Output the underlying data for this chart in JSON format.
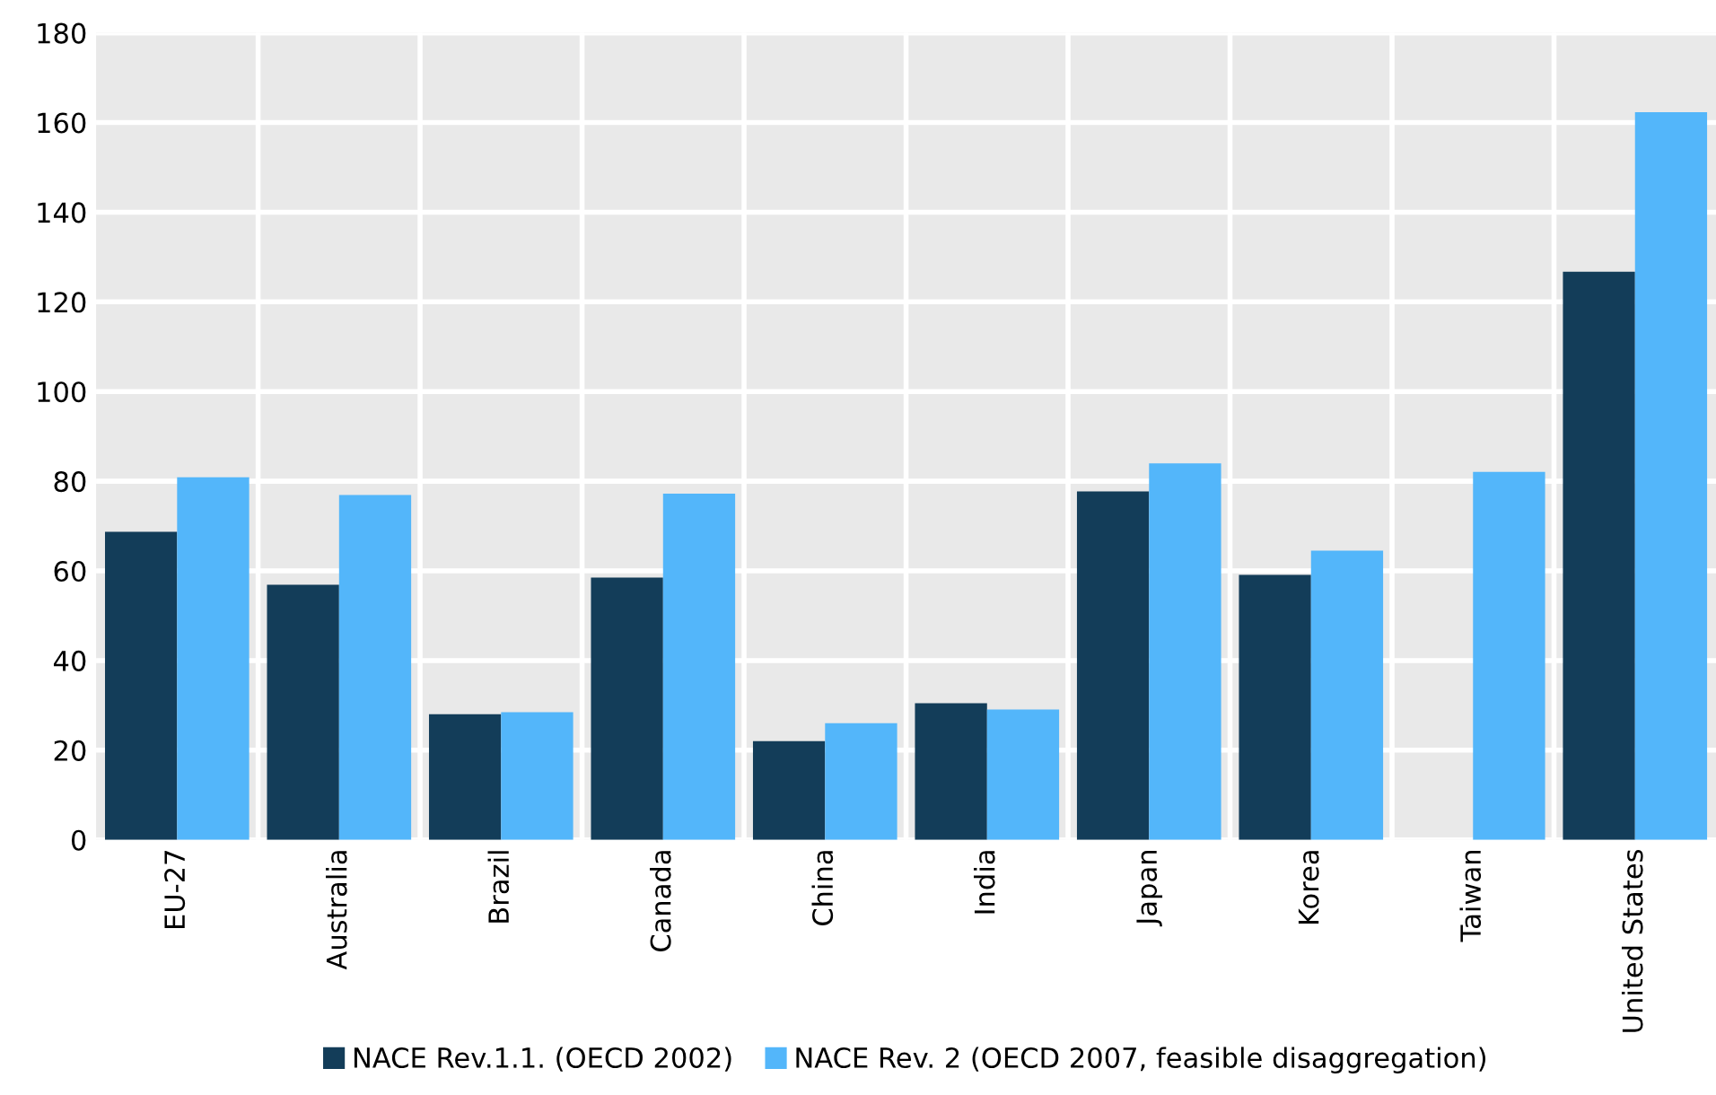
{
  "chart_data": {
    "type": "bar",
    "categories": [
      "EU-27",
      "Australia",
      "Brazil",
      "Canada",
      "China",
      "India",
      "Japan",
      "Korea",
      "Taiwan",
      "United States"
    ],
    "series": [
      {
        "name": "NACE Rev.1.1. (OECD 2002)",
        "color": "#133d59",
        "values": [
          68.7,
          56.9,
          28,
          58.5,
          22,
          30.5,
          77.7,
          59.1,
          null,
          126.7
        ]
      },
      {
        "name": "NACE Rev. 2 (OECD 2007, feasible disaggregation)",
        "color": "#53b6fa",
        "values": [
          80.9,
          76.9,
          28.5,
          77.2,
          26,
          29.1,
          84,
          64.5,
          82.1,
          162.3
        ]
      }
    ],
    "ylim": [
      0,
      180
    ],
    "yticks": [
      0,
      20,
      40,
      60,
      80,
      100,
      120,
      140,
      160,
      180
    ],
    "grid": true,
    "legend": "bottom"
  }
}
